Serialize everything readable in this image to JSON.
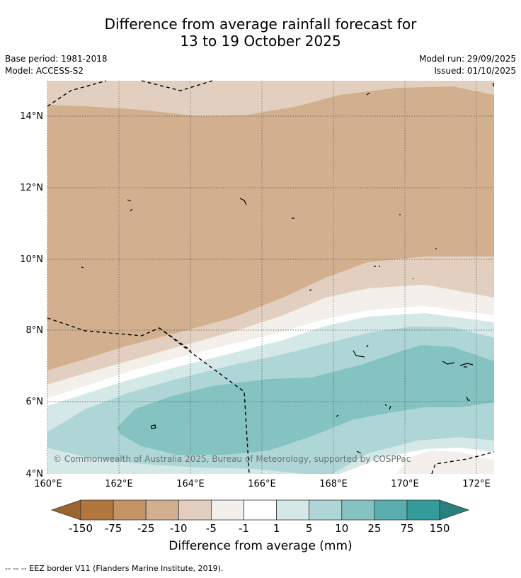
{
  "title_line1": "Difference from average rainfall forecast for",
  "title_line2": "13 to 19 October 2025",
  "base_period": "Base period: 1981-2018",
  "model": "Model: ACCESS-S2",
  "model_run": "Model run: 29/09/2025",
  "issued": "Issued: 01/10/2025",
  "map": {
    "lon_range": [
      160,
      172.5
    ],
    "lat_range": [
      4,
      15
    ],
    "x_ticks": [
      "160°E",
      "162°E",
      "164°E",
      "166°E",
      "168°E",
      "170°E",
      "172°E"
    ],
    "y_ticks": [
      "14°N",
      "12°N",
      "10°N",
      "8°N",
      "6°N",
      "4°N"
    ],
    "copyright": "© Commonwealth of Australia 2025, Bureau of Meteorology, supported by COSPPac"
  },
  "colorbar": {
    "labels": [
      "-150",
      "-75",
      "-25",
      "-10",
      "-5",
      "-1",
      "1",
      "5",
      "10",
      "25",
      "75",
      "150"
    ],
    "colors": [
      "#9c6430",
      "#b2773e",
      "#c39466",
      "#d2b08f",
      "#e3cfbf",
      "#f3efea",
      "#ffffff",
      "#d5e8e8",
      "#aed6d6",
      "#85c2c2",
      "#5aaeae",
      "#349b9b",
      "#2a7f7f"
    ],
    "label": "Difference from average (mm)"
  },
  "footer": "--  --  -- EEZ border V11 (Flanders Marine Institute, 2019)."
}
